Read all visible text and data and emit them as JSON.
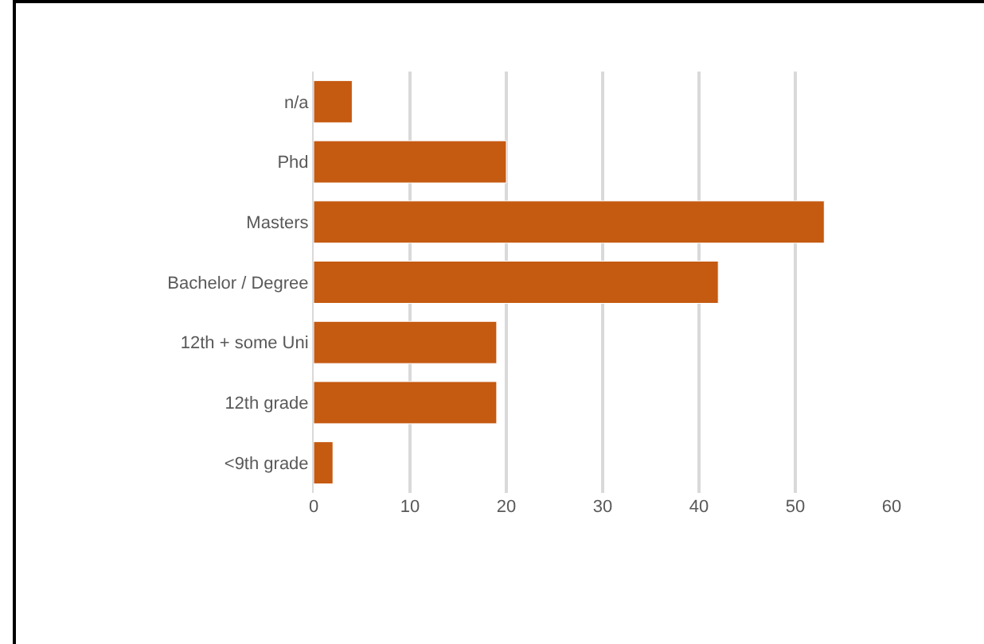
{
  "chart_data": {
    "type": "bar",
    "orientation": "horizontal",
    "categories": [
      "n/a",
      "Phd",
      "Masters",
      "Bachelor / Degree",
      "12th + some Uni",
      "12th grade",
      "<9th grade"
    ],
    "values": [
      4,
      20,
      53,
      42,
      19,
      19,
      2
    ],
    "color": "#c55a11",
    "xlim": [
      0,
      60
    ],
    "xticks": [
      0,
      10,
      20,
      30,
      40,
      50,
      60
    ],
    "grid": "x"
  }
}
